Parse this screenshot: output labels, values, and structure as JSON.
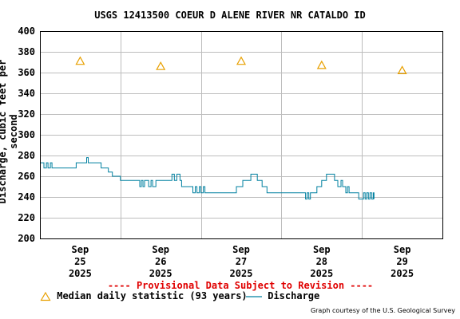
{
  "chart_data": {
    "type": "line",
    "title": "USGS 12413500 COEUR D ALENE RIVER NR CATALDO ID",
    "ylabel": "Discharge, cubic feet per second",
    "xlabel": "",
    "ylim": [
      200,
      400
    ],
    "y_ticks": [
      "200",
      "220",
      "240",
      "260",
      "280",
      "300",
      "320",
      "340",
      "360",
      "380",
      "400"
    ],
    "x_range": [
      0,
      5
    ],
    "x_ticks": [
      {
        "x": 0.5,
        "lines": [
          "Sep",
          "25",
          "2025"
        ]
      },
      {
        "x": 1.5,
        "lines": [
          "Sep",
          "26",
          "2025"
        ]
      },
      {
        "x": 2.5,
        "lines": [
          "Sep",
          "27",
          "2025"
        ]
      },
      {
        "x": 3.5,
        "lines": [
          "Sep",
          "28",
          "2025"
        ]
      },
      {
        "x": 4.5,
        "lines": [
          "Sep",
          "29",
          "2025"
        ]
      }
    ],
    "grid": true,
    "series": [
      {
        "name": "Discharge",
        "color": "#0080a0",
        "step": true,
        "points": [
          [
            0.0,
            273
          ],
          [
            0.05,
            268
          ],
          [
            0.08,
            273
          ],
          [
            0.1,
            268
          ],
          [
            0.13,
            273
          ],
          [
            0.15,
            268
          ],
          [
            0.45,
            273
          ],
          [
            0.58,
            278
          ],
          [
            0.6,
            273
          ],
          [
            0.76,
            268
          ],
          [
            0.85,
            264
          ],
          [
            0.9,
            260
          ],
          [
            1.0,
            256
          ],
          [
            1.24,
            250
          ],
          [
            1.26,
            256
          ],
          [
            1.28,
            250
          ],
          [
            1.3,
            256
          ],
          [
            1.35,
            250
          ],
          [
            1.38,
            256
          ],
          [
            1.4,
            250
          ],
          [
            1.44,
            256
          ],
          [
            1.64,
            262
          ],
          [
            1.67,
            256
          ],
          [
            1.7,
            262
          ],
          [
            1.74,
            256
          ],
          [
            1.76,
            250
          ],
          [
            1.9,
            244
          ],
          [
            1.93,
            250
          ],
          [
            1.95,
            244
          ],
          [
            1.98,
            250
          ],
          [
            2.0,
            244
          ],
          [
            2.03,
            250
          ],
          [
            2.05,
            244
          ],
          [
            2.44,
            250
          ],
          [
            2.52,
            256
          ],
          [
            2.62,
            262
          ],
          [
            2.7,
            256
          ],
          [
            2.76,
            250
          ],
          [
            2.82,
            244
          ],
          [
            3.3,
            238
          ],
          [
            3.32,
            244
          ],
          [
            3.34,
            238
          ],
          [
            3.36,
            244
          ],
          [
            3.44,
            250
          ],
          [
            3.5,
            256
          ],
          [
            3.56,
            262
          ],
          [
            3.66,
            256
          ],
          [
            3.7,
            250
          ],
          [
            3.74,
            256
          ],
          [
            3.76,
            250
          ],
          [
            3.8,
            244
          ],
          [
            3.82,
            250
          ],
          [
            3.84,
            244
          ],
          [
            3.96,
            238
          ],
          [
            4.02,
            244
          ],
          [
            4.04,
            238
          ],
          [
            4.06,
            244
          ],
          [
            4.08,
            238
          ],
          [
            4.1,
            244
          ],
          [
            4.12,
            238
          ],
          [
            4.14,
            244
          ],
          [
            4.15,
            238
          ],
          [
            4.15,
            238
          ]
        ]
      },
      {
        "name": "Median daily statistic (93 years)",
        "color": "#e8a000",
        "marker": "triangle",
        "points": [
          [
            0.5,
            371
          ],
          [
            1.5,
            366
          ],
          [
            2.5,
            371
          ],
          [
            3.5,
            367
          ],
          [
            4.5,
            362
          ]
        ]
      }
    ]
  },
  "provisional_note": "---- Provisional Data Subject to Revision ----",
  "legend": {
    "median_label": "Median daily statistic (93 years)",
    "discharge_label": "Discharge"
  },
  "credit": "Graph courtesy of the U.S. Geological Survey"
}
